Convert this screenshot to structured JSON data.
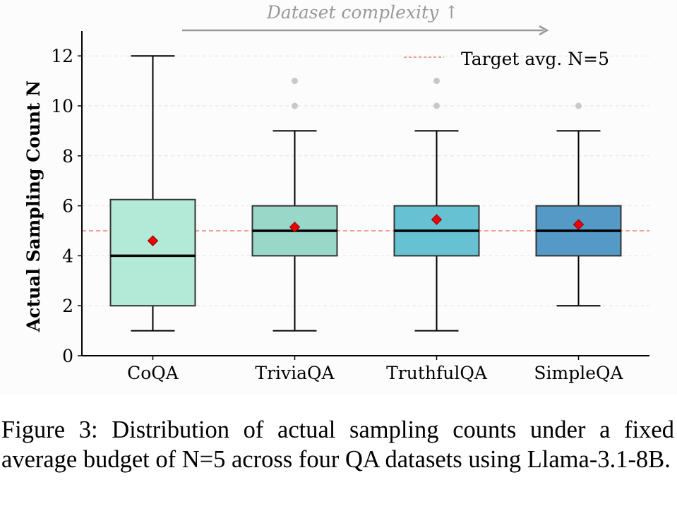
{
  "chart_data": {
    "type": "box",
    "title": "",
    "annotation": "Dataset complexity ↑",
    "xlabel": "",
    "ylabel": "Actual Sampling Count N",
    "ylim": [
      0,
      13
    ],
    "yticks": [
      0,
      2,
      4,
      6,
      8,
      10,
      12
    ],
    "ytick_labels": [
      "0",
      "2",
      "4",
      "6",
      "8",
      "10",
      "12"
    ],
    "grid": "horizontal-dashed",
    "categories": [
      "CoQA",
      "TriviaQA",
      "TruthfulQA",
      "SimpleQA"
    ],
    "boxes": [
      {
        "name": "CoQA",
        "whisker_low": 1,
        "q1": 2,
        "median": 4,
        "q3": 6.25,
        "whisker_high": 12,
        "mean": 4.6,
        "outliers": [],
        "color": "#b3e9d7"
      },
      {
        "name": "TriviaQA",
        "whisker_low": 1,
        "q1": 4,
        "median": 5,
        "q3": 6,
        "whisker_high": 9,
        "mean": 5.15,
        "outliers": [
          10,
          11
        ],
        "color": "#99d8c9"
      },
      {
        "name": "TruthfulQA",
        "whisker_low": 1,
        "q1": 4,
        "median": 5,
        "q3": 6,
        "whisker_high": 9,
        "mean": 5.45,
        "outliers": [
          10,
          11
        ],
        "color": "#66c2d2"
      },
      {
        "name": "SimpleQA",
        "whisker_low": 2,
        "q1": 4,
        "median": 5,
        "q3": 6,
        "whisker_high": 9,
        "mean": 5.25,
        "outliers": [
          10
        ],
        "color": "#5599c6"
      }
    ],
    "reference_line": {
      "value": 5,
      "label": "Target avg. N=5",
      "color": "#f08080"
    },
    "legend": {
      "placement": "top-right",
      "entries": [
        "Target avg. N=5"
      ]
    },
    "mean_marker_color": "#ee0000",
    "outlier_color": "#c8c8c8"
  },
  "caption": "Figure 3: Distribution of actual sampling counts under a fixed average budget of N=5 across four QA datasets using Llama-3.1-8B."
}
